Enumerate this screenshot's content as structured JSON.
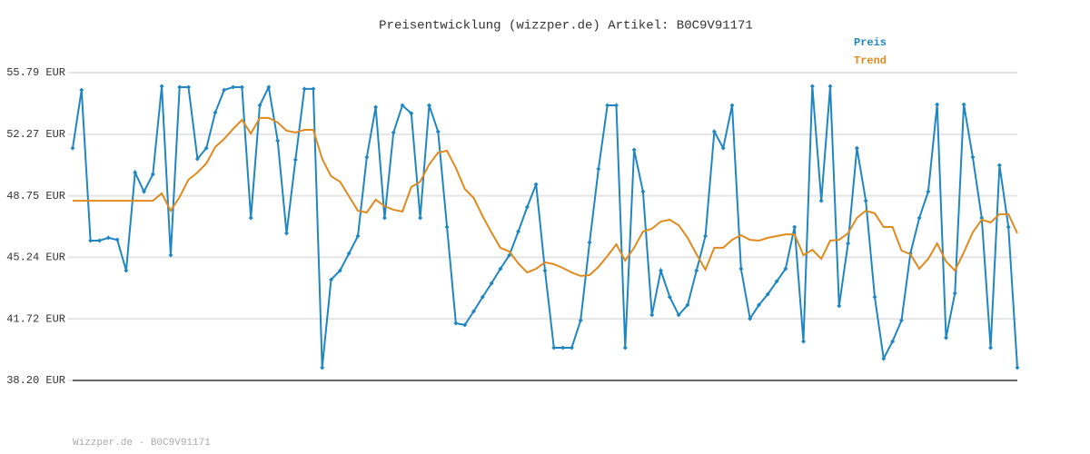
{
  "chart_data": {
    "type": "line",
    "title": "Preisentwicklung (wizzper.de) Artikel: B0C9V91171",
    "footer": "Wizzper.de - B0C9V91171",
    "ylim": [
      38.2,
      55.79
    ],
    "yticks": [
      {
        "value": 38.2,
        "label": "38.20 EUR"
      },
      {
        "value": 41.72,
        "label": "41.72 EUR"
      },
      {
        "value": 45.24,
        "label": "45.24 EUR"
      },
      {
        "value": 48.75,
        "label": "48.75 EUR"
      },
      {
        "value": 52.27,
        "label": "52.27 EUR"
      },
      {
        "value": 55.79,
        "label": "55.79 EUR"
      }
    ],
    "grid": true,
    "legend": "top-right",
    "series": [
      {
        "name": "Preis",
        "color": "#1f86c2",
        "markers": true,
        "values": [
          51.48,
          54.8,
          46.19,
          46.19,
          46.35,
          46.24,
          44.48,
          50.08,
          48.99,
          49.98,
          55.01,
          45.36,
          54.96,
          54.96,
          50.86,
          51.48,
          53.51,
          54.8,
          54.96,
          54.96,
          47.49,
          53.92,
          54.96,
          51.9,
          46.61,
          50.81,
          54.86,
          54.86,
          38.93,
          43.96,
          44.48,
          45.46,
          46.45,
          50.96,
          53.82,
          47.49,
          52.37,
          53.92,
          53.46,
          47.49,
          53.92,
          52.42,
          46.97,
          41.47,
          41.37,
          42.15,
          42.97,
          43.75,
          44.58,
          45.36,
          46.71,
          48.11,
          49.41,
          44.48,
          40.07,
          40.07,
          40.07,
          41.63,
          46.09,
          50.29,
          53.92,
          53.92,
          40.07,
          51.38,
          48.99,
          41.94,
          44.48,
          42.97,
          41.94,
          42.51,
          44.48,
          46.45,
          52.42,
          51.48,
          53.92,
          44.58,
          41.73,
          42.51,
          43.13,
          43.86,
          44.58,
          46.97,
          40.43,
          55.01,
          48.47,
          55.01,
          42.46,
          46.03,
          51.48,
          48.47,
          42.97,
          39.45,
          40.43,
          41.63,
          45.46,
          47.49,
          48.99,
          53.97,
          40.64,
          43.18,
          53.97,
          50.96,
          47.49,
          40.07,
          50.5,
          46.97,
          38.93
        ]
      },
      {
        "name": "Trend",
        "color": "#e08a1e",
        "markers": false,
        "values": [
          48.47,
          48.47,
          48.47,
          48.47,
          48.47,
          48.47,
          48.47,
          48.47,
          48.47,
          48.47,
          48.89,
          47.9,
          48.68,
          49.67,
          50.08,
          50.6,
          51.54,
          52.0,
          52.57,
          53.09,
          52.31,
          53.2,
          53.2,
          52.94,
          52.47,
          52.37,
          52.52,
          52.52,
          50.86,
          49.87,
          49.56,
          48.73,
          47.9,
          47.8,
          48.53,
          48.16,
          47.95,
          47.85,
          49.25,
          49.56,
          50.55,
          51.22,
          51.33,
          50.34,
          49.15,
          48.63,
          47.59,
          46.66,
          45.78,
          45.57,
          44.89,
          44.37,
          44.58,
          44.95,
          44.84,
          44.63,
          44.37,
          44.17,
          44.22,
          44.69,
          45.31,
          45.98,
          45.05,
          45.78,
          46.71,
          46.87,
          47.28,
          47.39,
          47.07,
          46.35,
          45.41,
          44.53,
          45.78,
          45.78,
          46.24,
          46.5,
          46.24,
          46.19,
          46.35,
          46.45,
          46.55,
          46.55,
          45.36,
          45.67,
          45.15,
          46.19,
          46.24,
          46.61,
          47.49,
          47.9,
          47.75,
          46.97,
          46.97,
          45.62,
          45.41,
          44.58,
          45.15,
          46.03,
          45.0,
          44.48,
          45.52,
          46.66,
          47.39,
          47.23,
          47.7,
          47.7,
          46.61
        ]
      }
    ]
  }
}
